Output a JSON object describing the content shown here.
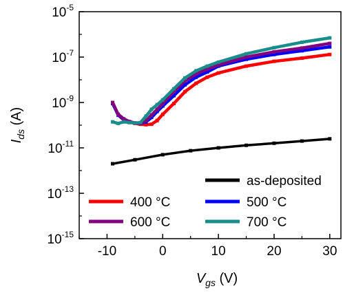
{
  "chart_data": {
    "type": "line",
    "xlabel": {
      "main": "V",
      "sub": "gs",
      "unit": " (V)"
    },
    "ylabel": {
      "main": "I",
      "sub": "ds",
      "unit": " (A)"
    },
    "xlim": [
      -15,
      32
    ],
    "ylim_log10": [
      -15,
      -5
    ],
    "y_scale": "log",
    "x_ticks": [
      -10,
      0,
      10,
      20,
      30
    ],
    "y_ticks": [
      {
        "base": "10",
        "exp": "-15",
        "value": -15
      },
      {
        "base": "10",
        "exp": "-13",
        "value": -13
      },
      {
        "base": "10",
        "exp": "-11",
        "value": -11
      },
      {
        "base": "10",
        "exp": "-9",
        "value": -9
      },
      {
        "base": "10",
        "exp": "-7",
        "value": -7
      },
      {
        "base": "10",
        "exp": "-5",
        "value": -5
      }
    ],
    "legend_placement": "bottom-right",
    "series": [
      {
        "name": "as-deposited",
        "color": "#000000",
        "x": [
          -9,
          -5,
          0,
          5,
          10,
          15,
          20,
          25,
          30
        ],
        "y": [
          2e-12,
          3e-12,
          5e-12,
          7.5e-12,
          1e-11,
          1.3e-11,
          1.6e-11,
          2e-11,
          2.5e-11
        ]
      },
      {
        "name": "400 °C",
        "color": "#ff0000",
        "x": [
          -9,
          -8,
          -7,
          -6,
          -5,
          -4,
          -3,
          -2,
          -1,
          0,
          2,
          4,
          6,
          8,
          10,
          15,
          20,
          25,
          30
        ],
        "y": [
          1e-09,
          2.8e-10,
          1.7e-10,
          1.4e-10,
          1.2e-10,
          1.1e-10,
          1.05e-10,
          1.1e-10,
          1.6e-10,
          3e-10,
          9e-10,
          3e-09,
          7e-09,
          1.3e-08,
          2e-08,
          4e-08,
          6.5e-08,
          9e-08,
          1.3e-07
        ]
      },
      {
        "name": "500 °C",
        "color": "#0000ff",
        "x": [
          -9,
          -8,
          -7,
          -6,
          -5,
          -4,
          -3,
          -2,
          -1,
          0,
          2,
          4,
          6,
          8,
          10,
          15,
          20,
          25,
          30
        ],
        "y": [
          9e-10,
          2.8e-10,
          1.8e-10,
          1.4e-10,
          1.25e-10,
          1.2e-10,
          1.4e-10,
          2.2e-10,
          4e-10,
          7e-10,
          2e-09,
          6e-09,
          1.3e-08,
          2.2e-08,
          4e-08,
          8e-08,
          1.3e-07,
          1.9e-07,
          2.8e-07
        ]
      },
      {
        "name": "600 °C",
        "color": "#800080",
        "x": [
          -9,
          -8,
          -7,
          -6,
          -5,
          -4,
          -3,
          -2,
          -1,
          0,
          2,
          4,
          6,
          8,
          10,
          15,
          20,
          25,
          30
        ],
        "y": [
          1e-09,
          3e-10,
          1.9e-10,
          1.45e-10,
          1.25e-10,
          1.2e-10,
          1.6e-10,
          2.8e-10,
          5e-10,
          9e-10,
          3e-09,
          9e-09,
          1.8e-08,
          3e-08,
          4.5e-08,
          1e-07,
          1.7e-07,
          2.5e-07,
          4e-07
        ]
      },
      {
        "name": "700 °C",
        "color": "#1a8c8c",
        "x": [
          -9,
          -8,
          -7,
          -6,
          -5,
          -4,
          -3,
          -2,
          -1,
          0,
          2,
          4,
          6,
          8,
          10,
          15,
          20,
          25,
          30
        ],
        "y": [
          1.4e-10,
          1.2e-10,
          1.4e-10,
          1.3e-10,
          1.25e-10,
          1.3e-10,
          2.5e-10,
          5e-10,
          8e-10,
          1.3e-09,
          4e-09,
          1.2e-08,
          2.5e-08,
          4e-08,
          6e-08,
          1.4e-07,
          2.6e-07,
          4.5e-07,
          7e-07
        ]
      }
    ],
    "legend": [
      {
        "series": "as-deposited",
        "label": "as-deposited"
      },
      {
        "series": "400 °C",
        "label": "400 °C"
      },
      {
        "series": "500 °C",
        "label": "500 °C"
      },
      {
        "series": "600 °C",
        "label": "600 °C"
      },
      {
        "series": "700 °C",
        "label": "700 °C"
      }
    ]
  }
}
